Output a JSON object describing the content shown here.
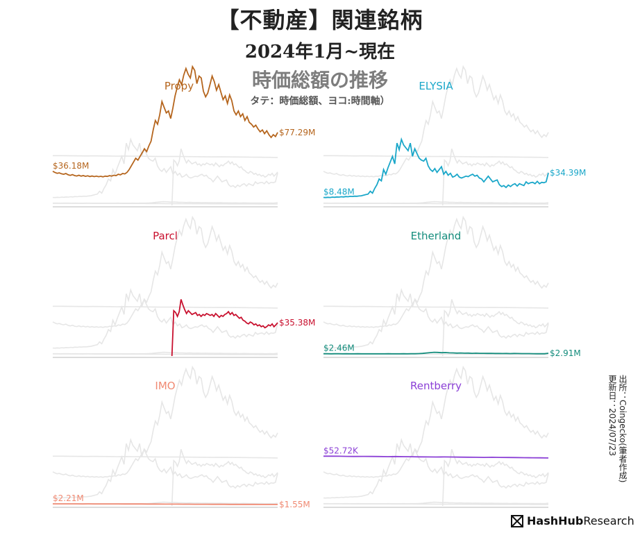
{
  "title": "【不動産】関連銘柄",
  "subtitle": "2024年1月~現在",
  "subtitle2": "時価総額の推移",
  "note": "タテ：時価総額、ヨコ:時間軸）",
  "source_line1": "出所：Coingecko(筆者作成)",
  "source_line2": "更新日：2024/07/23",
  "brand": {
    "bold": "HashHub",
    "regular": "Research"
  },
  "colors": {
    "ghost": "#e6e6e6",
    "axis": "#dcdcdc"
  },
  "chart_data": [
    {
      "type": "line",
      "title": "Propy",
      "color": "#b5651d",
      "start_label": "$36.18M",
      "end_label": "$77.29M",
      "values": [
        36.18,
        35,
        34,
        34.5,
        33.5,
        33,
        33.8,
        32.5,
        31.8,
        32.6,
        31.6,
        31.2,
        32,
        31,
        31.6,
        30.8,
        31.4,
        30.6,
        31.2,
        30.5,
        31,
        30.4,
        30.9,
        30.3,
        31,
        30.7,
        31.5,
        31.1,
        32,
        31.6,
        33,
        32.4,
        33.8,
        33.4,
        35,
        38,
        42,
        46,
        50,
        48,
        52,
        56,
        60,
        57,
        63,
        68,
        80,
        90,
        86,
        96,
        110,
        104,
        98,
        100,
        92,
        103,
        116,
        125,
        133,
        128,
        138,
        145,
        139,
        135,
        147,
        143,
        129,
        137,
        135,
        121,
        115,
        119,
        128,
        137,
        131,
        122,
        128,
        120,
        112,
        116,
        108,
        117,
        111,
        100,
        96,
        100,
        94,
        97,
        90,
        94,
        88,
        86,
        83,
        85,
        81,
        78,
        80,
        76,
        79,
        75,
        72,
        75,
        73,
        77.29
      ]
    },
    {
      "type": "line",
      "title": "ELYSIA",
      "color": "#1aa7c9",
      "start_label": "$8.48M",
      "end_label": "$34.39M",
      "values": [
        8.48,
        8.3,
        8.6,
        8.4,
        8.8,
        8.6,
        9,
        8.8,
        9.2,
        9,
        9.4,
        9.2,
        9.6,
        9.5,
        9.8,
        9.7,
        10,
        10.2,
        10.8,
        11.5,
        12,
        15,
        13,
        18,
        22,
        28,
        26,
        38,
        33,
        40,
        46,
        52,
        44,
        66,
        59,
        70,
        64,
        61,
        58,
        66,
        52,
        60,
        55,
        50,
        48,
        47,
        50,
        42,
        38,
        36,
        39,
        35,
        38,
        41,
        33,
        36,
        32,
        34,
        30,
        31,
        33,
        30,
        29,
        30,
        31,
        30.5,
        32,
        33,
        31,
        32,
        29,
        28,
        25,
        28,
        31,
        28,
        25,
        26,
        27,
        22,
        20,
        21,
        19,
        21.5,
        20,
        22,
        23,
        20.5,
        23,
        22,
        21,
        25,
        23,
        24,
        24.5,
        23,
        25.5,
        23,
        24.5,
        24,
        25,
        34.39
      ]
    },
    {
      "type": "line",
      "title": "Parcl",
      "color": "#c8102e",
      "start_label": "",
      "end_label": "$35.38M",
      "values": [
        0,
        48,
        46,
        42,
        47,
        60,
        54,
        49,
        45,
        48,
        46,
        44,
        45,
        46,
        43,
        44,
        42,
        44,
        43,
        45,
        44,
        43,
        44,
        42,
        45,
        43,
        41,
        43,
        42,
        44,
        45,
        47,
        44,
        46,
        43,
        44,
        42,
        40,
        41,
        38,
        37,
        35,
        34,
        36,
        35,
        33,
        34,
        32,
        33,
        31,
        32,
        30,
        31,
        33,
        32,
        34,
        31,
        33,
        35.38
      ]
    },
    {
      "type": "line",
      "title": "Etherland",
      "color": "#138c7c",
      "start_label": "$2.46M",
      "end_label": "$2.91M",
      "values": [
        2.46,
        2.4,
        2.38,
        2.42,
        2.4,
        2.36,
        2.4,
        2.38,
        2.35,
        2.4,
        2.37,
        2.35,
        2.36,
        2.38,
        2.34,
        2.36,
        2.35,
        2.4,
        2.36,
        2.38,
        2.35,
        2.4,
        2.38,
        2.42,
        2.45,
        2.6,
        2.8,
        3.2,
        3.6,
        4.0,
        3.8,
        3.5,
        3.7,
        3.4,
        3.3,
        3.1,
        3.2,
        3.0,
        3.1,
        2.9,
        3.0,
        2.85,
        2.9,
        2.8,
        2.85,
        2.7,
        2.75,
        2.65,
        2.7,
        2.6,
        2.7,
        2.65,
        2.6,
        2.55,
        2.6,
        2.5,
        2.45,
        2.5,
        2.4,
        2.91
      ]
    },
    {
      "type": "line",
      "title": "IMO",
      "color": "#f08a73",
      "start_label": "$2.21M",
      "end_label": "$1.55M",
      "values": [
        2.21,
        2.2,
        2.18,
        2.2,
        2.17,
        2.16,
        2.18,
        2.15,
        2.14,
        2.13,
        2.12,
        2.1,
        2.08,
        2.06,
        2.05,
        2.03,
        2.0,
        1.98,
        1.95,
        1.92,
        1.9,
        1.88,
        1.85,
        1.82,
        1.8,
        1.78,
        1.75,
        1.72,
        1.7,
        1.68,
        1.65,
        1.63,
        1.62,
        1.6,
        1.59,
        1.58,
        1.57,
        1.56,
        1.55
      ]
    },
    {
      "type": "line",
      "title": "Rentberry",
      "color": "#8b3fd6",
      "start_label": "$52.72K",
      "end_label": "",
      "values": [
        52.72,
        52.7,
        52.6,
        52.5,
        52.4,
        52.5,
        52.4,
        52.3,
        52.2,
        52.3,
        52.2,
        52.1,
        52.0,
        51.9,
        51.8,
        51.9,
        51.8,
        51.7,
        51.6,
        51.5,
        51.4,
        51.5,
        51.4,
        51.3,
        51.2,
        51.1,
        51.0,
        50.9,
        50.8
      ]
    }
  ]
}
